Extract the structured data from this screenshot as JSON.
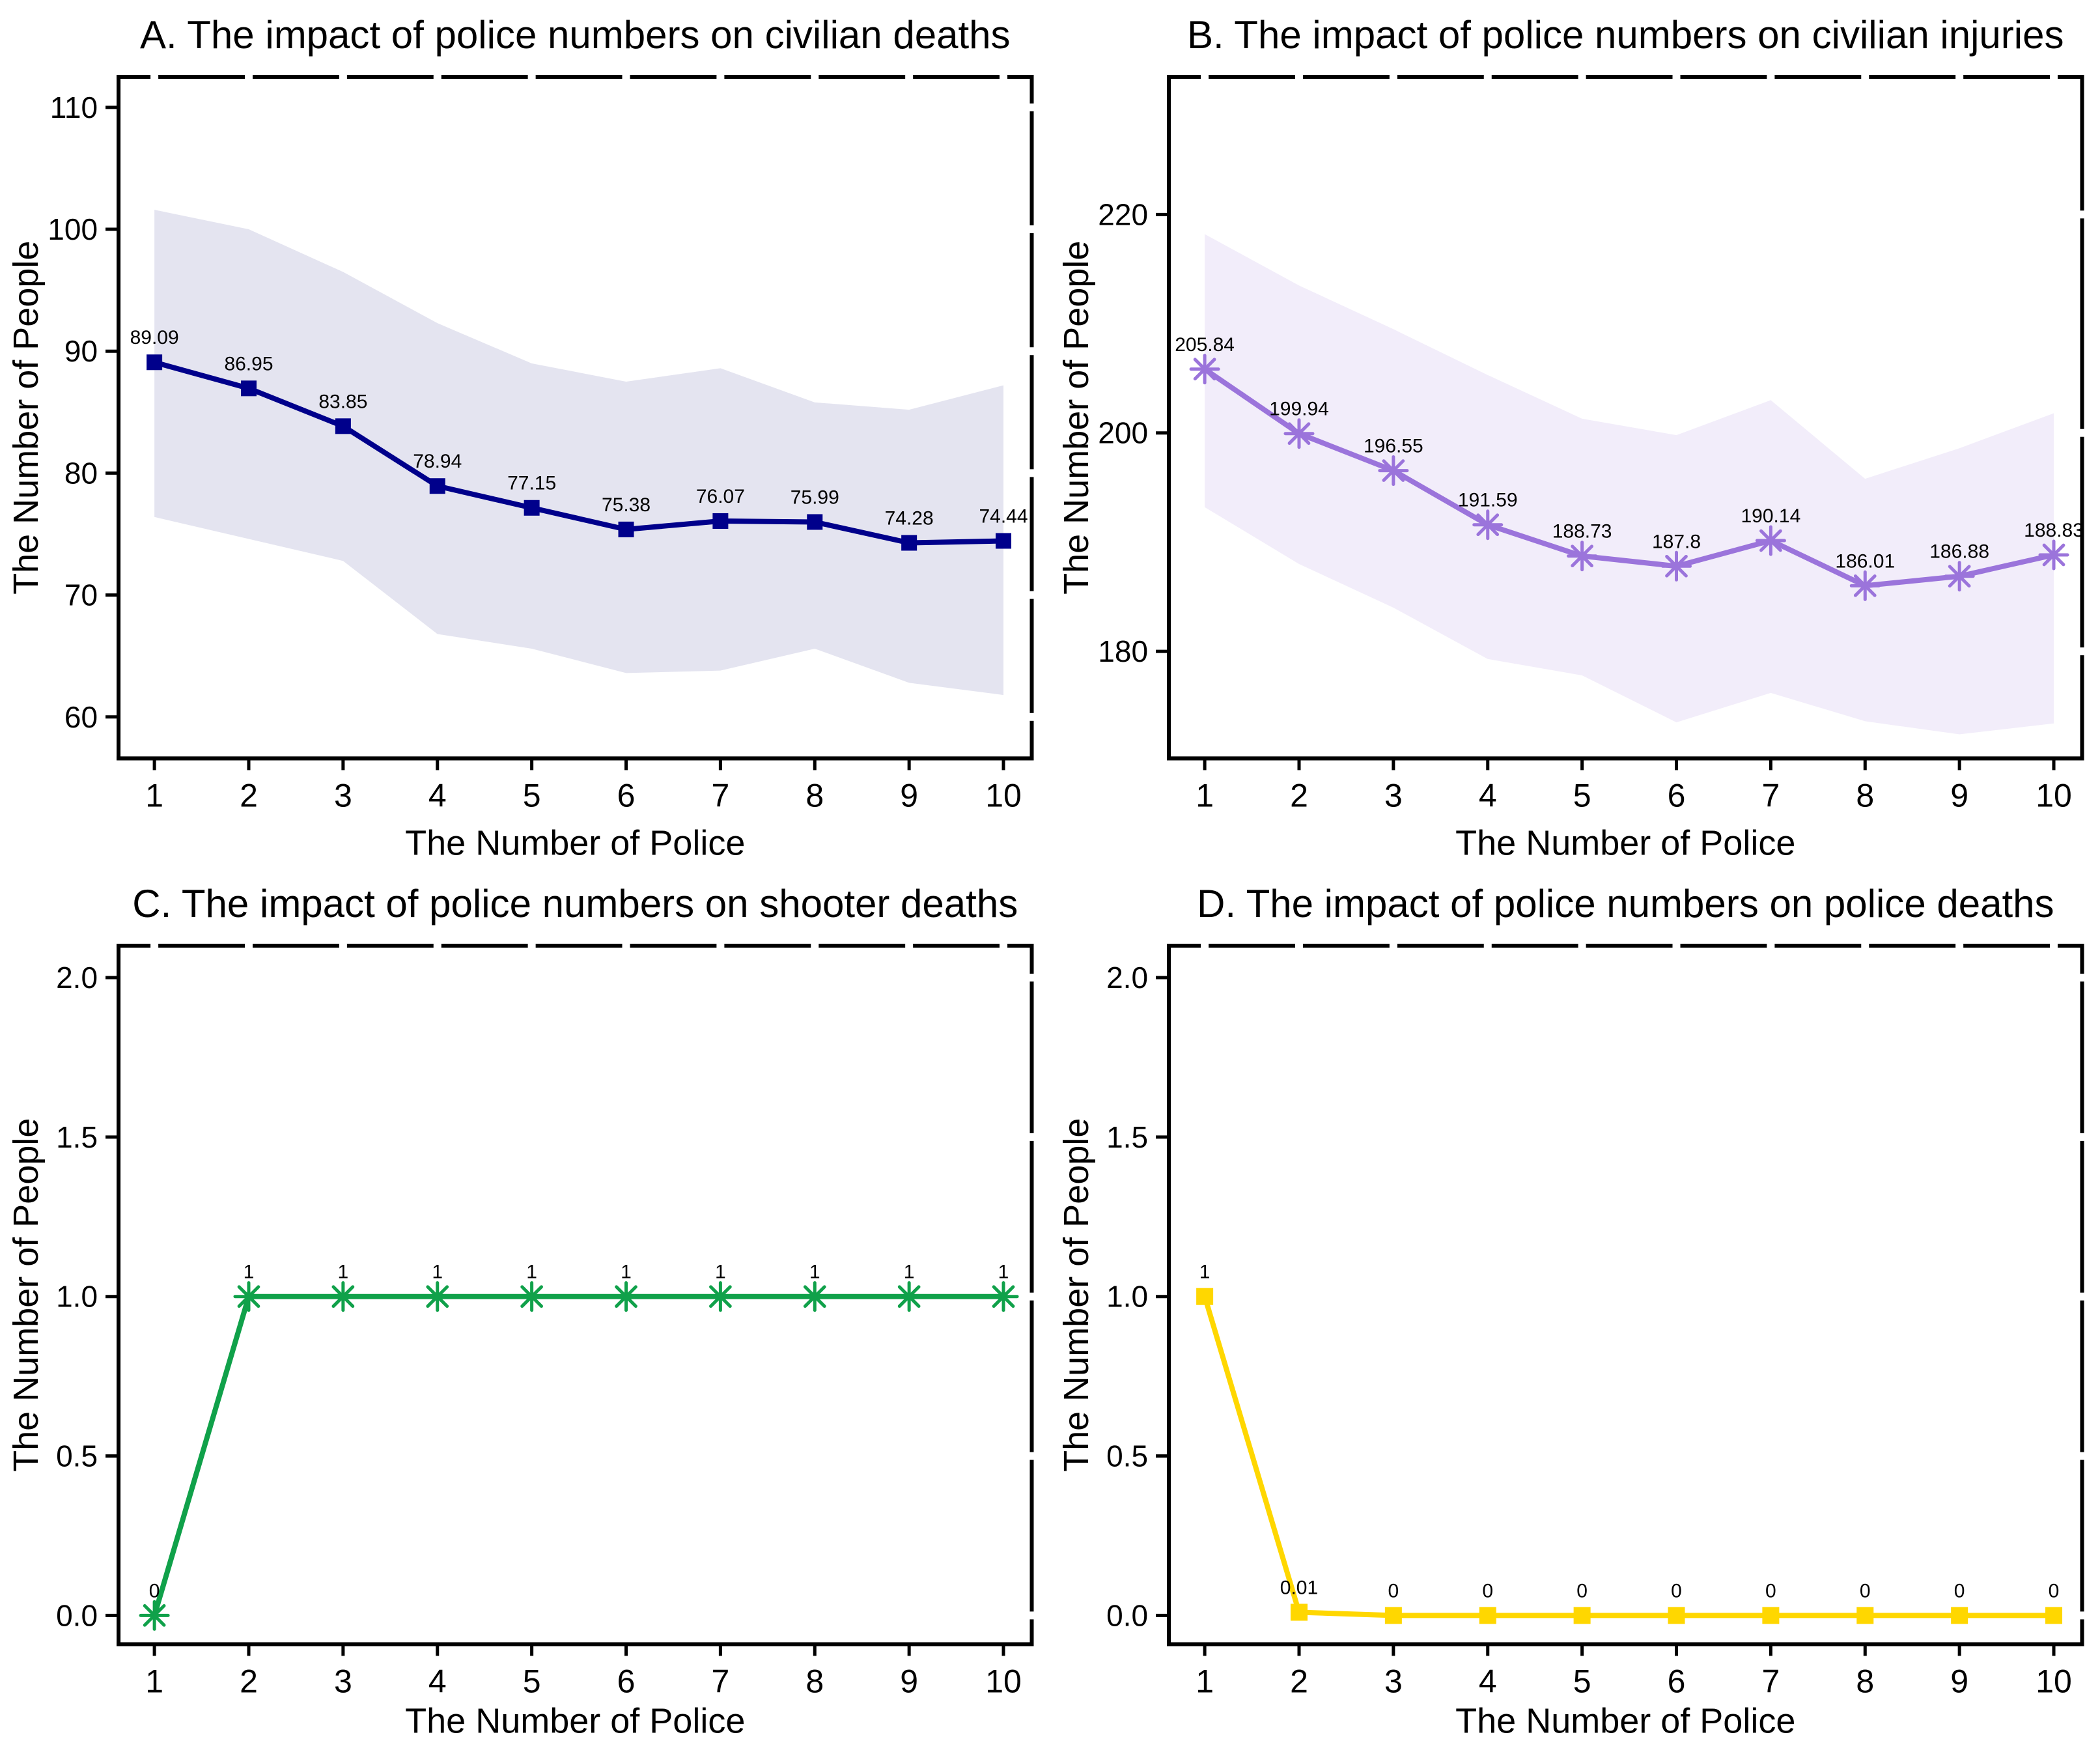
{
  "figure": {
    "background": "#ffffff",
    "border_color": "#000000",
    "text_color": "#000000"
  },
  "chart_data": [
    {
      "panel": "A",
      "type": "line",
      "title": "A. The impact of police numbers on civilian deaths",
      "xlabel": "The Number of Police",
      "ylabel": "The Number of People",
      "x": [
        1,
        2,
        3,
        4,
        5,
        6,
        7,
        8,
        9,
        10
      ],
      "values": [
        89.09,
        86.95,
        83.85,
        78.94,
        77.15,
        75.38,
        76.07,
        75.99,
        74.28,
        74.44
      ],
      "point_labels": [
        "89.09",
        "86.95",
        "83.85",
        "78.94",
        "77.15",
        "75.38",
        "76.07",
        "75.99",
        "74.28",
        "74.44"
      ],
      "band_upper": [
        101.6,
        100.0,
        96.5,
        92.3,
        89.0,
        87.5,
        88.6,
        85.8,
        85.2,
        87.2
      ],
      "band_lower": [
        76.4,
        74.6,
        72.8,
        66.8,
        65.6,
        63.6,
        63.8,
        65.6,
        62.8,
        61.8
      ],
      "line_color": "#00008B",
      "band_color": "#E4E4F0",
      "marker": "square",
      "marker_size": 24,
      "xticks": [
        1,
        2,
        3,
        4,
        5,
        6,
        7,
        8,
        9,
        10
      ],
      "xtick_labels": [
        "1",
        "2",
        "3",
        "4",
        "5",
        "6",
        "7",
        "8",
        "9",
        "10"
      ],
      "yticks": [
        60,
        70,
        80,
        90,
        100,
        110
      ],
      "ytick_labels": [
        "60",
        "70",
        "80",
        "90",
        "100",
        "110"
      ],
      "xlim": [
        0.62,
        10.3
      ],
      "ylim": [
        56.6,
        112.5
      ],
      "grid": false,
      "legend": "none"
    },
    {
      "panel": "B",
      "type": "line",
      "title": "B. The impact of police numbers on civilian injuries",
      "xlabel": "The Number of Police",
      "ylabel": "The Number of People",
      "x": [
        1,
        2,
        3,
        4,
        5,
        6,
        7,
        8,
        9,
        10
      ],
      "values": [
        205.84,
        199.94,
        196.55,
        191.59,
        188.73,
        187.8,
        190.14,
        186.01,
        186.88,
        188.83
      ],
      "point_labels": [
        "205.84",
        "199.94",
        "196.55",
        "191.59",
        "188.73",
        "187.8",
        "190.14",
        "186.01",
        "186.88",
        "188.83"
      ],
      "band_upper": [
        218.2,
        213.5,
        209.5,
        205.3,
        201.3,
        199.8,
        203.0,
        195.8,
        198.6,
        201.8
      ],
      "band_lower": [
        193.2,
        188.0,
        184.0,
        179.3,
        177.8,
        173.5,
        176.2,
        173.6,
        172.4,
        173.4
      ],
      "line_color": "#9B74DB",
      "band_color": "#F2EDFA",
      "marker": "asterisk",
      "marker_size": 42,
      "xticks": [
        1,
        2,
        3,
        4,
        5,
        6,
        7,
        8,
        9,
        10
      ],
      "xtick_labels": [
        "1",
        "2",
        "3",
        "4",
        "5",
        "6",
        "7",
        "8",
        "9",
        "10"
      ],
      "yticks": [
        180,
        200,
        220
      ],
      "ytick_labels": [
        "180",
        "200",
        "220"
      ],
      "xlim": [
        0.62,
        10.3
      ],
      "ylim": [
        170.2,
        232.6
      ],
      "grid": false,
      "legend": "none"
    },
    {
      "panel": "C",
      "type": "line",
      "title": "C. The impact of police numbers on shooter deaths",
      "xlabel": "The Number of Police",
      "ylabel": "The Number of People",
      "x": [
        1,
        2,
        3,
        4,
        5,
        6,
        7,
        8,
        9,
        10
      ],
      "values": [
        0,
        1,
        1,
        1,
        1,
        1,
        1,
        1,
        1,
        1
      ],
      "point_labels": [
        "0",
        "1",
        "1",
        "1",
        "1",
        "1",
        "1",
        "1",
        "1",
        "1"
      ],
      "band_upper": null,
      "band_lower": null,
      "line_color": "#10A14A",
      "band_color": null,
      "marker": "asterisk",
      "marker_size": 42,
      "xticks": [
        1,
        2,
        3,
        4,
        5,
        6,
        7,
        8,
        9,
        10
      ],
      "xtick_labels": [
        "1",
        "2",
        "3",
        "4",
        "5",
        "6",
        "7",
        "8",
        "9",
        "10"
      ],
      "yticks": [
        0.0,
        0.5,
        1.0,
        1.5,
        2.0
      ],
      "ytick_labels": [
        "0.0",
        "0.5",
        "1.0",
        "1.5",
        "2.0"
      ],
      "xlim": [
        0.62,
        10.3
      ],
      "ylim": [
        -0.09,
        2.1
      ],
      "grid": false,
      "legend": "none"
    },
    {
      "panel": "D",
      "type": "line",
      "title": "D. The impact of police numbers on police deaths",
      "xlabel": "The Number of Police",
      "ylabel": "The Number of People",
      "x": [
        1,
        2,
        3,
        4,
        5,
        6,
        7,
        8,
        9,
        10
      ],
      "values": [
        1,
        0.01,
        0,
        0,
        0,
        0,
        0,
        0,
        0,
        0
      ],
      "point_labels": [
        "1",
        "0.01",
        "0",
        "0",
        "0",
        "0",
        "0",
        "0",
        "0",
        "0"
      ],
      "band_upper": null,
      "band_lower": null,
      "line_color": "#FFD700",
      "band_color": null,
      "marker": "square",
      "marker_size": 26,
      "xticks": [
        1,
        2,
        3,
        4,
        5,
        6,
        7,
        8,
        9,
        10
      ],
      "xtick_labels": [
        "1",
        "2",
        "3",
        "4",
        "5",
        "6",
        "7",
        "8",
        "9",
        "10"
      ],
      "yticks": [
        0.0,
        0.5,
        1.0,
        1.5,
        2.0
      ],
      "ytick_labels": [
        "0.0",
        "0.5",
        "1.0",
        "1.5",
        "2.0"
      ],
      "xlim": [
        0.62,
        10.3
      ],
      "ylim": [
        -0.09,
        2.1
      ],
      "grid": false,
      "legend": "none"
    }
  ]
}
